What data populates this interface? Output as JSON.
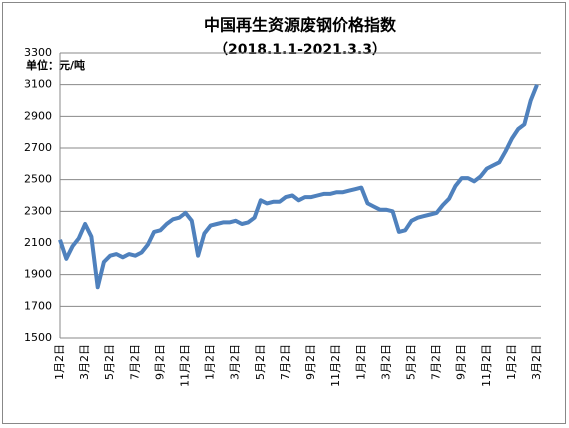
{
  "chart_data": {
    "type": "line",
    "title": "中国再生资源废钢价格指数",
    "subtitle": "（2018.1.1-2021.3.3）",
    "y_label": "单位：元/吨",
    "categories": [
      "1月2日",
      null,
      null,
      null,
      "3月2日",
      null,
      null,
      null,
      "5月2日",
      null,
      null,
      null,
      "7月2日",
      null,
      null,
      null,
      "9月2日",
      null,
      null,
      null,
      "11月2日",
      null,
      null,
      null,
      "1月2日",
      null,
      null,
      null,
      "3月2日",
      null,
      null,
      null,
      "5月2日",
      null,
      null,
      null,
      "7月2日",
      null,
      null,
      null,
      "9月2日",
      null,
      null,
      null,
      "11月2日",
      null,
      null,
      null,
      "1月2日",
      null,
      null,
      null,
      "3月2日",
      null,
      null,
      null,
      "5月2日",
      null,
      null,
      null,
      "7月2日",
      null,
      null,
      null,
      "9月2日",
      null,
      null,
      null,
      "11月2日",
      null,
      null,
      null,
      "1月2日",
      null,
      null,
      null,
      "3月2日"
    ],
    "series": [
      {
        "color": "#4f81bd",
        "values": [
          2120,
          2000,
          2080,
          2130,
          2220,
          2140,
          1820,
          1980,
          2020,
          2030,
          2010,
          2030,
          2020,
          2040,
          2090,
          2170,
          2180,
          2220,
          2250,
          2260,
          2290,
          2240,
          2020,
          2160,
          2210,
          2220,
          2230,
          2230,
          2240,
          2220,
          2230,
          2260,
          2370,
          2350,
          2360,
          2360,
          2390,
          2400,
          2370,
          2390,
          2390,
          2400,
          2410,
          2410,
          2420,
          2420,
          2430,
          2440,
          2450,
          2350,
          2330,
          2310,
          2310,
          2300,
          2170,
          2180,
          2240,
          2260,
          2270,
          2280,
          2290,
          2340,
          2380,
          2460,
          2510,
          2510,
          2490,
          2520,
          2570,
          2590,
          2610,
          2680,
          2760,
          2820,
          2850,
          3000,
          3100
        ]
      }
    ],
    "ylim": [
      1500,
      3300
    ],
    "yticks": [
      1500,
      1700,
      1900,
      2100,
      2300,
      2500,
      2700,
      2900,
      3100,
      3300
    ],
    "grid": true
  }
}
